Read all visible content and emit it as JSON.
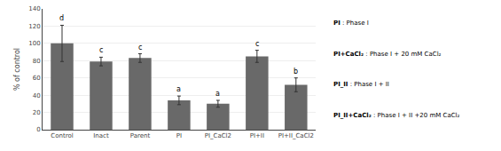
{
  "chart_data": {
    "type": "bar",
    "categories": [
      "Control",
      "Inact",
      "Parent",
      "PI",
      "PI_CaCl2",
      "PI+II",
      "PI+II_CaCl2"
    ],
    "values": [
      100,
      79,
      83,
      34,
      30,
      85,
      52
    ],
    "errors": [
      21,
      5,
      5,
      5,
      4,
      7,
      8
    ],
    "color": "#696969",
    "ylabel": "% of control",
    "ylim": [
      0,
      140
    ],
    "yticks": [
      0,
      20,
      40,
      60,
      80,
      100,
      120,
      140
    ],
    "grid": true,
    "annotations": [
      {
        "category": "Control",
        "text": "d"
      },
      {
        "category": "Inact",
        "text": "c"
      },
      {
        "category": "Parent",
        "text": "c"
      },
      {
        "category": "PI",
        "text": "a"
      },
      {
        "category": "PI_CaCl2",
        "text": "a"
      },
      {
        "category": "PI+II",
        "text": "c"
      },
      {
        "category": "PI+II_CaCl2",
        "text": "b"
      },
      {
        "bold": "PI",
        "text": "PI : Phase I"
      },
      {
        "bold": "PI+CaCl₂",
        "text": "PI+CaCl₂ : Phase I + 20 mM CaCl₂"
      },
      {
        "bold": "PI_II",
        "text": "PI_II : Phase I + II"
      },
      {
        "bold": "PI_II+CaCl₂",
        "text": "PI_II+CaCl₂ : Phase I + II +20 mM CaCl₂"
      }
    ]
  }
}
